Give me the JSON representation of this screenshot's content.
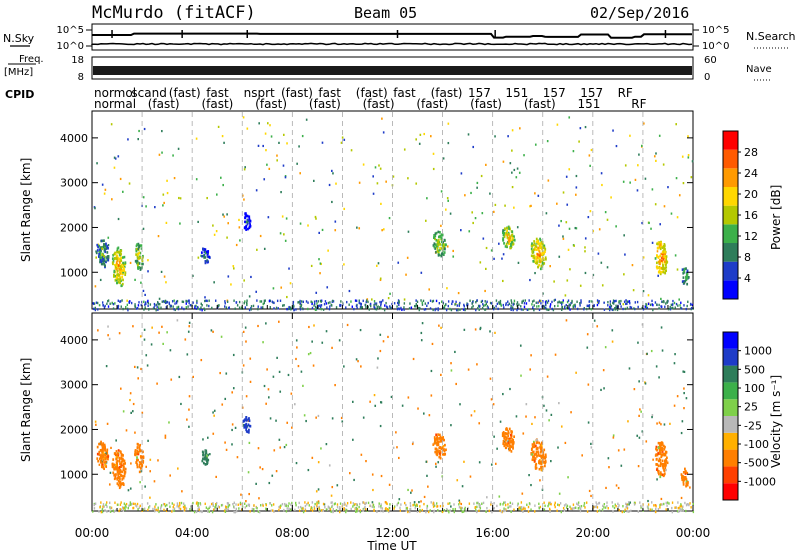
{
  "header": {
    "station": "McMurdo (fitACF)",
    "beam": "Beam 05",
    "date": "02/Sep/2016"
  },
  "small_panels": {
    "nsky_label": "N.Sky",
    "nsearch_label": "N.Search",
    "freq_label": "Freq.",
    "freq_unit": "[MHz]",
    "nave_label": "Nave",
    "cpid_label": "CPID",
    "left_ticks_top": [
      "10^5",
      "10^0"
    ],
    "right_ticks_top": [
      "10^5",
      "10^0"
    ],
    "left_ticks_freq": [
      "18",
      "8"
    ],
    "right_ticks_nave": [
      "60",
      "0"
    ],
    "cpid_row1": [
      "normol",
      "scand",
      "(fast)",
      "fast",
      "nsprt",
      "(fast)",
      "fast",
      "(fast)",
      "fast",
      "(fast)",
      "157",
      "151",
      "157",
      "157",
      "RF"
    ],
    "cpid_row2": [
      "normal",
      "(fast)",
      "(fast)",
      "(fast)",
      "(fast)",
      "(fast)",
      "(fast)",
      "(fast)",
      "(fast)",
      "151",
      "RF"
    ]
  },
  "chart_data": [
    {
      "type": "heatmap",
      "ylabel": "Slant Range [km]",
      "ylim": [
        180,
        4600
      ],
      "yticks": [
        "1000",
        "2000",
        "3000",
        "4000"
      ],
      "xlim": [
        0,
        24
      ],
      "colorbar": {
        "label": "Power [dB]",
        "ticks": [
          "4",
          "8",
          "12",
          "16",
          "20",
          "24",
          "28"
        ],
        "colors": [
          "#0000ff",
          "#1e3cc8",
          "#2e7d5a",
          "#3cb04a",
          "#b4c800",
          "#ffd700",
          "#ff9a00",
          "#ff5a00",
          "#ff0000"
        ]
      },
      "patches": [
        {
          "t": 0.4,
          "r": 1450,
          "w": 0.5,
          "h": 600,
          "v": 14
        },
        {
          "t": 1.05,
          "r": 1150,
          "w": 0.55,
          "h": 850,
          "v": 22
        },
        {
          "t": 1.85,
          "r": 1400,
          "w": 0.35,
          "h": 650,
          "v": 18
        },
        {
          "t": 4.5,
          "r": 1400,
          "w": 0.35,
          "h": 350,
          "v": 10
        },
        {
          "t": 6.15,
          "r": 2150,
          "w": 0.3,
          "h": 400,
          "v": 8
        },
        {
          "t": 13.85,
          "r": 1650,
          "w": 0.55,
          "h": 550,
          "v": 18
        },
        {
          "t": 16.6,
          "r": 1800,
          "w": 0.5,
          "h": 550,
          "v": 20
        },
        {
          "t": 17.8,
          "r": 1450,
          "w": 0.6,
          "h": 700,
          "v": 22
        },
        {
          "t": 22.7,
          "r": 1350,
          "w": 0.5,
          "h": 800,
          "v": 24
        },
        {
          "t": 23.65,
          "r": 950,
          "w": 0.3,
          "h": 400,
          "v": 14
        }
      ]
    },
    {
      "type": "heatmap",
      "ylabel": "Slant Range [km]",
      "xlabel": "Time UT",
      "ylim": [
        180,
        4600
      ],
      "yticks": [
        "1000",
        "2000",
        "3000",
        "4000"
      ],
      "xlim": [
        0,
        24
      ],
      "xticks": [
        "00:00",
        "04:00",
        "08:00",
        "12:00",
        "16:00",
        "20:00",
        "00:00"
      ],
      "colorbar": {
        "label": "Velocity [m s⁻¹]",
        "ticks": [
          "1000",
          "500",
          "100",
          "25",
          "-25",
          "-100",
          "-500",
          "-1000"
        ],
        "colors": [
          "#0000ff",
          "#1e3cc8",
          "#2e7d5a",
          "#3cb04a",
          "#7fd04a",
          "#b8b8b8",
          "#ffb000",
          "#ff7f00",
          "#ff4000",
          "#ff0000"
        ]
      },
      "patches": [
        {
          "t": 0.4,
          "r": 1450,
          "w": 0.5,
          "h": 600,
          "v": -200
        },
        {
          "t": 1.05,
          "r": 1150,
          "w": 0.55,
          "h": 850,
          "v": -300
        },
        {
          "t": 1.85,
          "r": 1400,
          "w": 0.35,
          "h": 650,
          "v": -250
        },
        {
          "t": 4.5,
          "r": 1400,
          "w": 0.35,
          "h": 350,
          "v": 150
        },
        {
          "t": 6.15,
          "r": 2150,
          "w": 0.3,
          "h": 400,
          "v": 600
        },
        {
          "t": 13.85,
          "r": 1650,
          "w": 0.55,
          "h": 550,
          "v": -300
        },
        {
          "t": 16.6,
          "r": 1800,
          "w": 0.5,
          "h": 550,
          "v": -300
        },
        {
          "t": 17.8,
          "r": 1450,
          "w": 0.6,
          "h": 700,
          "v": -300
        },
        {
          "t": 22.7,
          "r": 1350,
          "w": 0.5,
          "h": 800,
          "v": -300
        },
        {
          "t": 23.65,
          "r": 950,
          "w": 0.3,
          "h": 400,
          "v": -300
        }
      ]
    }
  ]
}
